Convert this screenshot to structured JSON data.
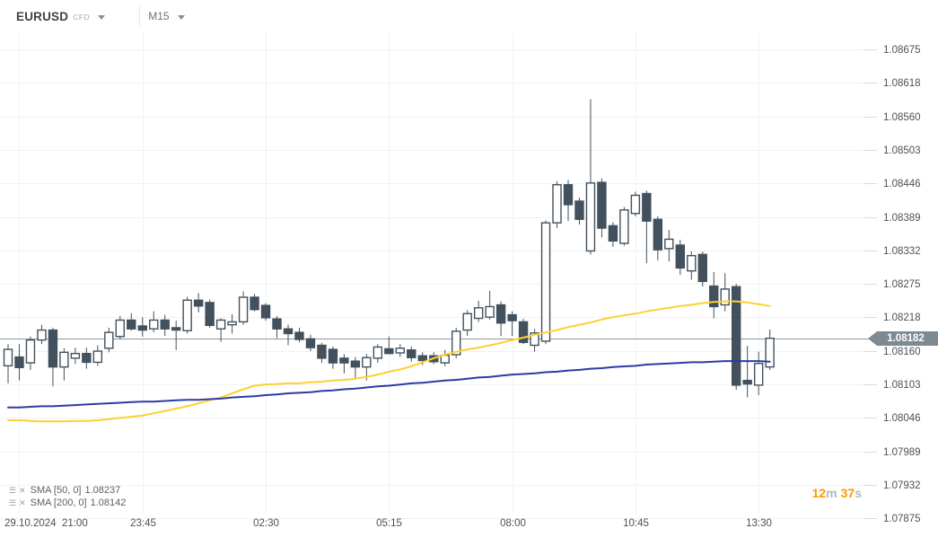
{
  "toolbar": {
    "symbol": "EURUSD",
    "symbol_type": "CFD",
    "timeframe": "M15"
  },
  "indicators": [
    {
      "label": "SMA [50, 0]",
      "value": "1.08237"
    },
    {
      "label": "SMA [200, 0]",
      "value": "1.08142"
    }
  ],
  "countdown": {
    "minutes": "12",
    "minutes_unit": "m",
    "seconds": "37",
    "seconds_unit": "s"
  },
  "current_price": {
    "value": "1.08182"
  },
  "colors": {
    "candle": "#42515d",
    "bull_fill": "#ffffff",
    "sma50": "#fdd130",
    "sma200": "#2e3ba3",
    "grid": "#f0f2f4",
    "tick": "#d8dce0",
    "axis_text": "#4b5157",
    "price_line": "#8f98a0",
    "badge_bg": "#7e8a92",
    "timer_number": "#ff9800",
    "timer_unit": "#b3b8bd"
  },
  "chart_data": {
    "type": "candlestick",
    "title": "EURUSD CFD, M15",
    "current_price": 1.08182,
    "y_axis": {
      "min": 1.07875,
      "max": 1.08675,
      "labels": [
        1.08675,
        1.08618,
        1.0856,
        1.08503,
        1.08446,
        1.08389,
        1.08332,
        1.08275,
        1.08218,
        1.0816,
        1.08103,
        1.08046,
        1.07989,
        1.07932,
        1.07875
      ]
    },
    "x_axis": {
      "ticks": [
        {
          "label": "29.10.2024  21:00",
          "candle_index": 1
        },
        {
          "label": "23:45",
          "candle_index": 12
        },
        {
          "label": "02:30",
          "candle_index": 23
        },
        {
          "label": "05:15",
          "candle_index": 34
        },
        {
          "label": "08:00",
          "candle_index": 45
        },
        {
          "label": "10:45",
          "candle_index": 56
        },
        {
          "label": "13:30",
          "candle_index": 67
        }
      ]
    },
    "candles": [
      {
        "t": "20:45",
        "o": 1.08135,
        "h": 1.08172,
        "l": 1.08105,
        "c": 1.08163
      },
      {
        "t": "21:00",
        "o": 1.0815,
        "h": 1.08172,
        "l": 1.0811,
        "c": 1.08132
      },
      {
        "t": "21:15",
        "o": 1.0814,
        "h": 1.08185,
        "l": 1.08128,
        "c": 1.08179
      },
      {
        "t": "21:30",
        "o": 1.08179,
        "h": 1.08205,
        "l": 1.08172,
        "c": 1.08196
      },
      {
        "t": "21:45",
        "o": 1.08196,
        "h": 1.082,
        "l": 1.081,
        "c": 1.08133
      },
      {
        "t": "22:00",
        "o": 1.08133,
        "h": 1.08165,
        "l": 1.0811,
        "c": 1.08158
      },
      {
        "t": "22:15",
        "o": 1.08148,
        "h": 1.08166,
        "l": 1.08138,
        "c": 1.08156
      },
      {
        "t": "22:30",
        "o": 1.08156,
        "h": 1.08166,
        "l": 1.0813,
        "c": 1.08141
      },
      {
        "t": "22:45",
        "o": 1.08141,
        "h": 1.0817,
        "l": 1.08135,
        "c": 1.0816
      },
      {
        "t": "23:00",
        "o": 1.08165,
        "h": 1.082,
        "l": 1.08158,
        "c": 1.08192
      },
      {
        "t": "23:15",
        "o": 1.08185,
        "h": 1.0822,
        "l": 1.0818,
        "c": 1.08213
      },
      {
        "t": "23:30",
        "o": 1.08213,
        "h": 1.08225,
        "l": 1.08195,
        "c": 1.08198
      },
      {
        "t": "23:45",
        "o": 1.08203,
        "h": 1.08218,
        "l": 1.08185,
        "c": 1.08196
      },
      {
        "t": "00:00",
        "o": 1.08198,
        "h": 1.08228,
        "l": 1.08192,
        "c": 1.08213
      },
      {
        "t": "00:15",
        "o": 1.08213,
        "h": 1.08222,
        "l": 1.08186,
        "c": 1.08198
      },
      {
        "t": "00:30",
        "o": 1.082,
        "h": 1.08212,
        "l": 1.08162,
        "c": 1.08196
      },
      {
        "t": "00:45",
        "o": 1.08195,
        "h": 1.08253,
        "l": 1.0819,
        "c": 1.08247
      },
      {
        "t": "01:00",
        "o": 1.08247,
        "h": 1.08259,
        "l": 1.08226,
        "c": 1.08237
      },
      {
        "t": "01:15",
        "o": 1.08243,
        "h": 1.08248,
        "l": 1.082,
        "c": 1.08204
      },
      {
        "t": "01:30",
        "o": 1.08198,
        "h": 1.08216,
        "l": 1.08176,
        "c": 1.08213
      },
      {
        "t": "01:45",
        "o": 1.08205,
        "h": 1.08223,
        "l": 1.0819,
        "c": 1.0821
      },
      {
        "t": "02:00",
        "o": 1.0821,
        "h": 1.08262,
        "l": 1.08205,
        "c": 1.08252
      },
      {
        "t": "02:15",
        "o": 1.08252,
        "h": 1.08258,
        "l": 1.08228,
        "c": 1.08231
      },
      {
        "t": "02:30",
        "o": 1.08238,
        "h": 1.08242,
        "l": 1.08212,
        "c": 1.08217
      },
      {
        "t": "02:45",
        "o": 1.08215,
        "h": 1.0822,
        "l": 1.08182,
        "c": 1.08198
      },
      {
        "t": "03:00",
        "o": 1.08198,
        "h": 1.08205,
        "l": 1.0817,
        "c": 1.0819
      },
      {
        "t": "03:15",
        "o": 1.08192,
        "h": 1.082,
        "l": 1.08175,
        "c": 1.0818
      },
      {
        "t": "03:30",
        "o": 1.08181,
        "h": 1.08188,
        "l": 1.0816,
        "c": 1.08166
      },
      {
        "t": "03:45",
        "o": 1.0817,
        "h": 1.08174,
        "l": 1.0814,
        "c": 1.08148
      },
      {
        "t": "04:00",
        "o": 1.08163,
        "h": 1.08168,
        "l": 1.0813,
        "c": 1.0814
      },
      {
        "t": "04:15",
        "o": 1.08148,
        "h": 1.08155,
        "l": 1.08122,
        "c": 1.0814
      },
      {
        "t": "04:30",
        "o": 1.08143,
        "h": 1.0815,
        "l": 1.08112,
        "c": 1.08133
      },
      {
        "t": "04:45",
        "o": 1.08133,
        "h": 1.08155,
        "l": 1.0811,
        "c": 1.08149
      },
      {
        "t": "05:00",
        "o": 1.08148,
        "h": 1.08172,
        "l": 1.0814,
        "c": 1.08167
      },
      {
        "t": "05:15",
        "o": 1.08164,
        "h": 1.08185,
        "l": 1.08155,
        "c": 1.08156
      },
      {
        "t": "05:30",
        "o": 1.08157,
        "h": 1.08172,
        "l": 1.0815,
        "c": 1.08165
      },
      {
        "t": "05:45",
        "o": 1.08162,
        "h": 1.08168,
        "l": 1.08142,
        "c": 1.08149
      },
      {
        "t": "06:00",
        "o": 1.08152,
        "h": 1.08158,
        "l": 1.08136,
        "c": 1.08144
      },
      {
        "t": "06:15",
        "o": 1.08152,
        "h": 1.08158,
        "l": 1.08138,
        "c": 1.08142
      },
      {
        "t": "06:30",
        "o": 1.0814,
        "h": 1.08162,
        "l": 1.08134,
        "c": 1.08153
      },
      {
        "t": "06:45",
        "o": 1.08154,
        "h": 1.082,
        "l": 1.08148,
        "c": 1.08194
      },
      {
        "t": "07:00",
        "o": 1.08196,
        "h": 1.0823,
        "l": 1.08186,
        "c": 1.08224
      },
      {
        "t": "07:15",
        "o": 1.08216,
        "h": 1.08246,
        "l": 1.0821,
        "c": 1.08234
      },
      {
        "t": "07:30",
        "o": 1.08218,
        "h": 1.08263,
        "l": 1.08214,
        "c": 1.08236
      },
      {
        "t": "07:45",
        "o": 1.08239,
        "h": 1.08245,
        "l": 1.08186,
        "c": 1.08208
      },
      {
        "t": "08:00",
        "o": 1.08222,
        "h": 1.08228,
        "l": 1.08186,
        "c": 1.08212
      },
      {
        "t": "08:15",
        "o": 1.0821,
        "h": 1.08215,
        "l": 1.08172,
        "c": 1.08175
      },
      {
        "t": "08:30",
        "o": 1.0817,
        "h": 1.08198,
        "l": 1.08159,
        "c": 1.08191
      },
      {
        "t": "08:45",
        "o": 1.08177,
        "h": 1.08383,
        "l": 1.08172,
        "c": 1.08379
      },
      {
        "t": "09:00",
        "o": 1.08379,
        "h": 1.0845,
        "l": 1.0837,
        "c": 1.08444
      },
      {
        "t": "09:15",
        "o": 1.08444,
        "h": 1.08452,
        "l": 1.08382,
        "c": 1.0841
      },
      {
        "t": "09:30",
        "o": 1.08416,
        "h": 1.08422,
        "l": 1.08376,
        "c": 1.08385
      },
      {
        "t": "09:45",
        "o": 1.08331,
        "h": 1.0859,
        "l": 1.08325,
        "c": 1.08447
      },
      {
        "t": "10:00",
        "o": 1.08448,
        "h": 1.08455,
        "l": 1.08354,
        "c": 1.0837
      },
      {
        "t": "10:15",
        "o": 1.08374,
        "h": 1.0838,
        "l": 1.08338,
        "c": 1.08348
      },
      {
        "t": "10:30",
        "o": 1.08344,
        "h": 1.08406,
        "l": 1.0834,
        "c": 1.08401
      },
      {
        "t": "10:45",
        "o": 1.08395,
        "h": 1.08432,
        "l": 1.0839,
        "c": 1.08426
      },
      {
        "t": "11:00",
        "o": 1.08429,
        "h": 1.08434,
        "l": 1.0831,
        "c": 1.08382
      },
      {
        "t": "11:15",
        "o": 1.08385,
        "h": 1.0839,
        "l": 1.08315,
        "c": 1.08333
      },
      {
        "t": "11:30",
        "o": 1.08335,
        "h": 1.08367,
        "l": 1.08313,
        "c": 1.08351
      },
      {
        "t": "11:45",
        "o": 1.08341,
        "h": 1.0835,
        "l": 1.0829,
        "c": 1.08302
      },
      {
        "t": "12:00",
        "o": 1.08297,
        "h": 1.0833,
        "l": 1.08282,
        "c": 1.08323
      },
      {
        "t": "12:15",
        "o": 1.08325,
        "h": 1.0833,
        "l": 1.0827,
        "c": 1.08279
      },
      {
        "t": "12:30",
        "o": 1.08271,
        "h": 1.08295,
        "l": 1.08216,
        "c": 1.08236
      },
      {
        "t": "12:45",
        "o": 1.08239,
        "h": 1.08293,
        "l": 1.08228,
        "c": 1.08266
      },
      {
        "t": "13:00",
        "o": 1.0827,
        "h": 1.08275,
        "l": 1.08094,
        "c": 1.08102
      },
      {
        "t": "13:15",
        "o": 1.0811,
        "h": 1.08169,
        "l": 1.08081,
        "c": 1.08104
      },
      {
        "t": "13:30",
        "o": 1.08102,
        "h": 1.08159,
        "l": 1.08085,
        "c": 1.08139
      },
      {
        "t": "13:45",
        "o": 1.08133,
        "h": 1.08197,
        "l": 1.08128,
        "c": 1.08182
      }
    ],
    "overlays": [
      {
        "name": "SMA 50",
        "color": "#fdd130",
        "values": [
          1.08042,
          1.08042,
          1.08041,
          1.0804,
          1.0804,
          1.0804,
          1.08041,
          1.08041,
          1.08042,
          1.08044,
          1.08046,
          1.08048,
          1.0805,
          1.08054,
          1.08058,
          1.08062,
          1.08066,
          1.08071,
          1.08076,
          1.08081,
          1.08088,
          1.08095,
          1.08101,
          1.08103,
          1.08104,
          1.08105,
          1.08105,
          1.08107,
          1.08108,
          1.0811,
          1.08111,
          1.08113,
          1.08116,
          1.0812,
          1.08125,
          1.08129,
          1.08134,
          1.08141,
          1.08148,
          1.08154,
          1.08159,
          1.08163,
          1.08166,
          1.0817,
          1.08174,
          1.08179,
          1.08183,
          1.08188,
          1.08192,
          1.08196,
          1.08201,
          1.08205,
          1.08209,
          1.08214,
          1.08218,
          1.08221,
          1.08224,
          1.08228,
          1.08231,
          1.08234,
          1.08237,
          1.08239,
          1.08242,
          1.08244,
          1.08245,
          1.08245,
          1.08243,
          1.0824,
          1.08237
        ]
      },
      {
        "name": "SMA 200",
        "color": "#2e3ba3",
        "values": [
          1.08064,
          1.08064,
          1.08065,
          1.08066,
          1.08066,
          1.08067,
          1.08068,
          1.08069,
          1.0807,
          1.08071,
          1.08072,
          1.08073,
          1.08074,
          1.08074,
          1.08075,
          1.08076,
          1.08077,
          1.08077,
          1.08078,
          1.08079,
          1.08081,
          1.08082,
          1.08083,
          1.08085,
          1.08086,
          1.08088,
          1.08089,
          1.0809,
          1.08092,
          1.08093,
          1.08095,
          1.08096,
          1.08098,
          1.081,
          1.08101,
          1.08103,
          1.08105,
          1.08106,
          1.08108,
          1.0811,
          1.08111,
          1.08113,
          1.08115,
          1.08116,
          1.08118,
          1.0812,
          1.08121,
          1.08122,
          1.08124,
          1.08125,
          1.08127,
          1.08128,
          1.0813,
          1.08131,
          1.08133,
          1.08134,
          1.08135,
          1.08137,
          1.08138,
          1.08139,
          1.0814,
          1.08141,
          1.08141,
          1.08142,
          1.08143,
          1.08143,
          1.08143,
          1.08143,
          1.08142
        ]
      }
    ]
  }
}
